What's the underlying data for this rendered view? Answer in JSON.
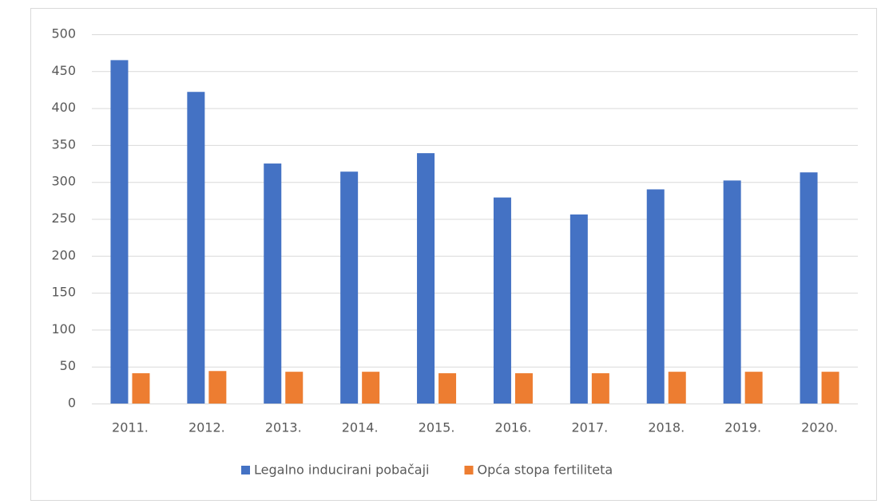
{
  "chart_data": {
    "type": "bar",
    "categories": [
      "2011.",
      "2012.",
      "2013.",
      "2014.",
      "2015.",
      "2016.",
      "2017.",
      "2018.",
      "2019.",
      "2020."
    ],
    "series": [
      {
        "name": "Legalno inducirani pobačaji",
        "color": "#4472c4",
        "values": [
          465,
          422,
          325,
          314,
          339,
          279,
          256,
          290,
          302,
          313
        ]
      },
      {
        "name": "Opća stopa fertiliteta",
        "color": "#ed7d31",
        "values": [
          41,
          44,
          43,
          43,
          41,
          41,
          41,
          43,
          43,
          43
        ]
      }
    ],
    "ylim": [
      0,
      500
    ],
    "yticks": [
      0,
      50,
      100,
      150,
      200,
      250,
      300,
      350,
      400,
      450,
      500
    ],
    "grid": true,
    "legend": "bottom"
  }
}
